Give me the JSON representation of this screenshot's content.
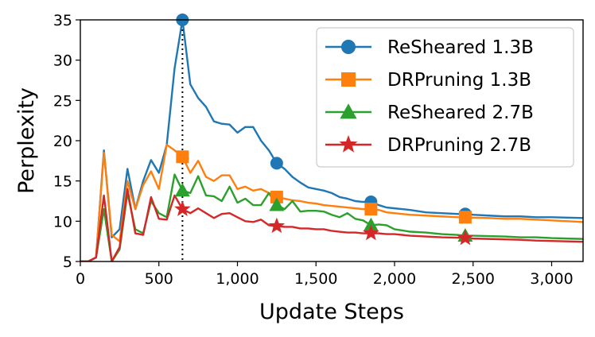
{
  "chart_data": {
    "type": "line",
    "xlabel": "Update Steps",
    "ylabel": "Perplexity",
    "xlim": [
      0,
      3200
    ],
    "ylim": [
      5,
      35
    ],
    "xticks": [
      0,
      500,
      1000,
      1500,
      2000,
      2500,
      3000
    ],
    "xtick_labels": [
      "0",
      "500",
      "1,000",
      "1,500",
      "2,000",
      "2,500",
      "3,000"
    ],
    "yticks": [
      5,
      10,
      15,
      20,
      25,
      30,
      35
    ],
    "ytick_labels": [
      "5",
      "10",
      "15",
      "20",
      "25",
      "30",
      "35"
    ],
    "vline_x": 650,
    "legend_position": "top-right",
    "series": [
      {
        "name": "ReSheared 1.3B",
        "color": "#1f77b4",
        "marker": "circle",
        "markers_at": [
          650,
          1250,
          1850,
          2450
        ],
        "points": [
          [
            0,
            5
          ],
          [
            50,
            5
          ],
          [
            100,
            5.5
          ],
          [
            150,
            18.8
          ],
          [
            200,
            8
          ],
          [
            250,
            9
          ],
          [
            300,
            16.5
          ],
          [
            350,
            11.5
          ],
          [
            400,
            15
          ],
          [
            450,
            17.6
          ],
          [
            500,
            16
          ],
          [
            550,
            19.5
          ],
          [
            600,
            29
          ],
          [
            650,
            35
          ],
          [
            700,
            27
          ],
          [
            750,
            25.3
          ],
          [
            800,
            24.2
          ],
          [
            850,
            22.4
          ],
          [
            900,
            22.1
          ],
          [
            950,
            22
          ],
          [
            1000,
            21
          ],
          [
            1050,
            21.7
          ],
          [
            1100,
            21.7
          ],
          [
            1150,
            20
          ],
          [
            1200,
            18.8
          ],
          [
            1250,
            17.2
          ],
          [
            1300,
            16.5
          ],
          [
            1350,
            15.5
          ],
          [
            1400,
            14.8
          ],
          [
            1450,
            14.2
          ],
          [
            1500,
            14
          ],
          [
            1550,
            13.8
          ],
          [
            1600,
            13.5
          ],
          [
            1650,
            13
          ],
          [
            1700,
            12.8
          ],
          [
            1750,
            12.5
          ],
          [
            1800,
            12.4
          ],
          [
            1850,
            12.4
          ],
          [
            1900,
            12
          ],
          [
            1950,
            11.7
          ],
          [
            2000,
            11.6
          ],
          [
            2100,
            11.4
          ],
          [
            2200,
            11.1
          ],
          [
            2300,
            11
          ],
          [
            2400,
            10.9
          ],
          [
            2450,
            10.9
          ],
          [
            2500,
            10.8
          ],
          [
            2600,
            10.7
          ],
          [
            2700,
            10.6
          ],
          [
            2800,
            10.6
          ],
          [
            2900,
            10.5
          ],
          [
            3000,
            10.5
          ],
          [
            3100,
            10.45
          ],
          [
            3200,
            10.4
          ]
        ]
      },
      {
        "name": "DRPruning 1.3B",
        "color": "#ff7f0e",
        "marker": "square",
        "markers_at": [
          650,
          1250,
          1850,
          2450
        ],
        "points": [
          [
            0,
            5
          ],
          [
            50,
            5
          ],
          [
            100,
            5.5
          ],
          [
            150,
            18.5
          ],
          [
            200,
            8.3
          ],
          [
            250,
            7.5
          ],
          [
            300,
            15
          ],
          [
            350,
            11.5
          ],
          [
            400,
            14.5
          ],
          [
            450,
            16.2
          ],
          [
            500,
            14
          ],
          [
            550,
            19.5
          ],
          [
            600,
            18.8
          ],
          [
            650,
            18
          ],
          [
            700,
            16
          ],
          [
            750,
            17.5
          ],
          [
            800,
            15.5
          ],
          [
            850,
            15
          ],
          [
            900,
            15.7
          ],
          [
            950,
            15.7
          ],
          [
            1000,
            14
          ],
          [
            1050,
            14.3
          ],
          [
            1100,
            13.8
          ],
          [
            1150,
            14
          ],
          [
            1200,
            13.5
          ],
          [
            1250,
            13
          ],
          [
            1300,
            12.8
          ],
          [
            1350,
            12.6
          ],
          [
            1400,
            12.5
          ],
          [
            1450,
            12.3
          ],
          [
            1500,
            12.2
          ],
          [
            1550,
            12
          ],
          [
            1600,
            11.9
          ],
          [
            1650,
            11.8
          ],
          [
            1700,
            11.7
          ],
          [
            1750,
            11.6
          ],
          [
            1800,
            11.5
          ],
          [
            1850,
            11.5
          ],
          [
            1900,
            11.4
          ],
          [
            1950,
            11.1
          ],
          [
            2000,
            11
          ],
          [
            2100,
            10.8
          ],
          [
            2200,
            10.7
          ],
          [
            2300,
            10.6
          ],
          [
            2400,
            10.5
          ],
          [
            2450,
            10.5
          ],
          [
            2500,
            10.45
          ],
          [
            2600,
            10.4
          ],
          [
            2700,
            10.3
          ],
          [
            2800,
            10.3
          ],
          [
            2900,
            10.2
          ],
          [
            3000,
            10.1
          ],
          [
            3100,
            10
          ],
          [
            3200,
            9.9
          ]
        ]
      },
      {
        "name": "ReSheared 2.7B",
        "color": "#2ca02c",
        "marker": "triangle",
        "markers_at": [
          650,
          1250,
          1850,
          2450
        ],
        "points": [
          [
            0,
            5
          ],
          [
            50,
            5
          ],
          [
            100,
            5.5
          ],
          [
            150,
            11.5
          ],
          [
            200,
            5
          ],
          [
            250,
            6.5
          ],
          [
            300,
            13.5
          ],
          [
            350,
            9
          ],
          [
            400,
            8.5
          ],
          [
            450,
            12.5
          ],
          [
            500,
            11
          ],
          [
            550,
            10.5
          ],
          [
            600,
            15.8
          ],
          [
            650,
            13.8
          ],
          [
            700,
            13.5
          ],
          [
            750,
            15.6
          ],
          [
            800,
            13.2
          ],
          [
            850,
            13.1
          ],
          [
            900,
            12.5
          ],
          [
            950,
            14.3
          ],
          [
            1000,
            12.3
          ],
          [
            1050,
            12.8
          ],
          [
            1100,
            12
          ],
          [
            1150,
            12
          ],
          [
            1200,
            13.5
          ],
          [
            1250,
            12
          ],
          [
            1300,
            11.5
          ],
          [
            1350,
            12.5
          ],
          [
            1400,
            11.2
          ],
          [
            1450,
            11.3
          ],
          [
            1500,
            11.3
          ],
          [
            1550,
            11.2
          ],
          [
            1600,
            10.8
          ],
          [
            1650,
            10.5
          ],
          [
            1700,
            11
          ],
          [
            1750,
            10.3
          ],
          [
            1800,
            10.1
          ],
          [
            1850,
            9.5
          ],
          [
            1900,
            9.6
          ],
          [
            1950,
            9.5
          ],
          [
            2000,
            9
          ],
          [
            2100,
            8.7
          ],
          [
            2200,
            8.6
          ],
          [
            2300,
            8.4
          ],
          [
            2400,
            8.3
          ],
          [
            2450,
            8.2
          ],
          [
            2500,
            8.2
          ],
          [
            2600,
            8.15
          ],
          [
            2700,
            8.1
          ],
          [
            2800,
            8
          ],
          [
            2900,
            8
          ],
          [
            3000,
            7.9
          ],
          [
            3100,
            7.85
          ],
          [
            3200,
            7.8
          ]
        ]
      },
      {
        "name": "DRPruning 2.7B",
        "color": "#d62728",
        "marker": "star",
        "markers_at": [
          650,
          1250,
          1850,
          2450
        ],
        "points": [
          [
            0,
            5
          ],
          [
            50,
            5
          ],
          [
            100,
            5.5
          ],
          [
            150,
            13.2
          ],
          [
            200,
            5
          ],
          [
            250,
            6.8
          ],
          [
            300,
            14
          ],
          [
            350,
            8.5
          ],
          [
            400,
            8.3
          ],
          [
            450,
            13
          ],
          [
            500,
            10.3
          ],
          [
            550,
            10.2
          ],
          [
            600,
            13.2
          ],
          [
            650,
            11.5
          ],
          [
            700,
            11
          ],
          [
            750,
            11.6
          ],
          [
            800,
            11
          ],
          [
            850,
            10.4
          ],
          [
            900,
            10.9
          ],
          [
            950,
            11
          ],
          [
            1000,
            10.5
          ],
          [
            1050,
            10
          ],
          [
            1100,
            9.9
          ],
          [
            1150,
            10.2
          ],
          [
            1200,
            9.5
          ],
          [
            1250,
            9.4
          ],
          [
            1300,
            9.3
          ],
          [
            1350,
            9.3
          ],
          [
            1400,
            9.1
          ],
          [
            1450,
            9.1
          ],
          [
            1500,
            9
          ],
          [
            1550,
            9
          ],
          [
            1600,
            8.8
          ],
          [
            1650,
            8.7
          ],
          [
            1700,
            8.6
          ],
          [
            1750,
            8.6
          ],
          [
            1800,
            8.5
          ],
          [
            1850,
            8.5
          ],
          [
            1900,
            8.5
          ],
          [
            1950,
            8.4
          ],
          [
            2000,
            8.4
          ],
          [
            2100,
            8.2
          ],
          [
            2200,
            8.1
          ],
          [
            2300,
            8
          ],
          [
            2400,
            7.95
          ],
          [
            2450,
            7.9
          ],
          [
            2500,
            7.85
          ],
          [
            2600,
            7.8
          ],
          [
            2700,
            7.75
          ],
          [
            2800,
            7.7
          ],
          [
            2900,
            7.6
          ],
          [
            3000,
            7.55
          ],
          [
            3100,
            7.5
          ],
          [
            3200,
            7.45
          ]
        ]
      }
    ]
  }
}
